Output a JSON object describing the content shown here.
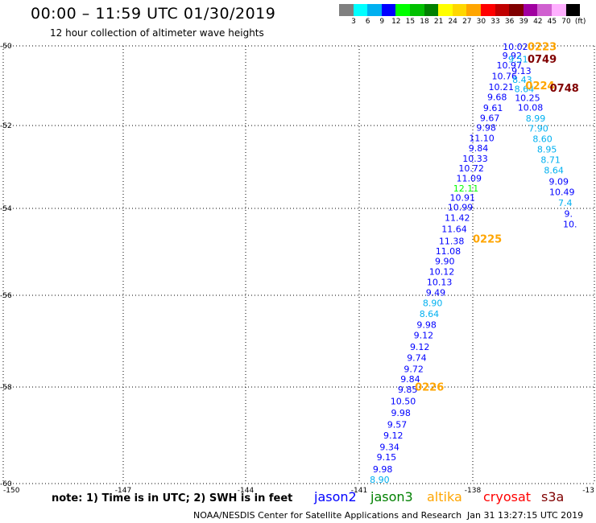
{
  "title": "00:00 – 11:59 UTC 01/30/2019",
  "subtitle": "12 hour collection of altimeter wave heights",
  "color_scale": {
    "labels": [
      "3",
      "6",
      "9",
      "12",
      "15",
      "18",
      "21",
      "24",
      "27",
      "30",
      "33",
      "36",
      "39",
      "42",
      "45",
      "70",
      "(ft)"
    ],
    "colors": [
      "#808080",
      "#00ffff",
      "#00b0f0",
      "#0000ff",
      "#00ff00",
      "#00c000",
      "#008000",
      "#ffff00",
      "#ffd700",
      "#ffa500",
      "#ff0000",
      "#c00000",
      "#800000",
      "#a000a0",
      "#d060d0",
      "#ffb0ff",
      "#000000"
    ]
  },
  "axes": {
    "longitude_labels": [
      "-150",
      "-147",
      "-144",
      "-141",
      "-138",
      "-13"
    ],
    "latitude_labels": [
      "-50",
      "-52",
      "-54",
      "-56",
      "-58",
      "-60"
    ]
  },
  "satellites": [
    {
      "name": "jason2",
      "color": "#0000ff"
    },
    {
      "name": "jason3",
      "color": "#008000"
    },
    {
      "name": "altika",
      "color": "#ffa500"
    },
    {
      "name": "cryosat",
      "color": "#ff0000"
    },
    {
      "name": "s3a",
      "color": "#800000"
    }
  ],
  "note": "note:  1) Time is in UTC;  2) SWH is in feet",
  "credit": "NOAA/NESDIS Center for Satellite Applications and Research",
  "timestamp": "Jan 31 13:27:15 UTC 2019",
  "track_main": [
    {
      "lon": -140.46,
      "lat": -59.93,
      "v": "8.90",
      "c": "#00b0f0"
    },
    {
      "lon": -140.38,
      "lat": -59.72,
      "v": "9.98",
      "c": "#0000ff"
    },
    {
      "lon": -140.28,
      "lat": -59.47,
      "v": "9.15",
      "c": "#0000ff"
    },
    {
      "lon": -140.2,
      "lat": -59.26,
      "v": "9.34",
      "c": "#0000ff"
    },
    {
      "lon": -140.1,
      "lat": -59.02,
      "v": "9.12",
      "c": "#0000ff"
    },
    {
      "lon": -140.0,
      "lat": -58.79,
      "v": "9.57",
      "c": "#0000ff"
    },
    {
      "lon": -139.9,
      "lat": -58.55,
      "v": "9.98",
      "c": "#0000ff"
    },
    {
      "lon": -139.84,
      "lat": -58.31,
      "v": "10.50",
      "c": "#0000ff"
    },
    {
      "lon": -139.72,
      "lat": -58.07,
      "v": "9.85",
      "c": "#0000ff"
    },
    {
      "lon": -139.65,
      "lat": -57.84,
      "v": "9.84",
      "c": "#0000ff"
    },
    {
      "lon": -139.56,
      "lat": -57.62,
      "v": "9.72",
      "c": "#0000ff"
    },
    {
      "lon": -139.48,
      "lat": -57.38,
      "v": "9.74",
      "c": "#0000ff"
    },
    {
      "lon": -139.4,
      "lat": -57.14,
      "v": "9.12",
      "c": "#0000ff"
    },
    {
      "lon": -139.3,
      "lat": -56.89,
      "v": "9.12",
      "c": "#0000ff"
    },
    {
      "lon": -139.22,
      "lat": -56.66,
      "v": "9.98",
      "c": "#0000ff"
    },
    {
      "lon": -139.15,
      "lat": -56.42,
      "v": "8.64",
      "c": "#00b0f0"
    },
    {
      "lon": -139.06,
      "lat": -56.18,
      "v": "8.90",
      "c": "#00b0f0"
    },
    {
      "lon": -138.98,
      "lat": -55.95,
      "v": "9.49",
      "c": "#0000ff"
    },
    {
      "lon": -138.88,
      "lat": -55.71,
      "v": "10.13",
      "c": "#0000ff"
    },
    {
      "lon": -138.82,
      "lat": -55.47,
      "v": "10.12",
      "c": "#0000ff"
    },
    {
      "lon": -138.74,
      "lat": -55.23,
      "v": "9.90",
      "c": "#0000ff"
    },
    {
      "lon": -138.65,
      "lat": -55.0,
      "v": "11.08",
      "c": "#0000ff"
    },
    {
      "lon": -138.56,
      "lat": -54.77,
      "v": "11.38",
      "c": "#0000ff"
    },
    {
      "lon": -138.49,
      "lat": -54.49,
      "v": "11.64",
      "c": "#0000ff"
    },
    {
      "lon": -138.41,
      "lat": -54.23,
      "v": "11.42",
      "c": "#0000ff"
    },
    {
      "lon": -138.33,
      "lat": -53.99,
      "v": "10.99",
      "c": "#0000ff"
    },
    {
      "lon": -138.27,
      "lat": -53.76,
      "v": "10.91",
      "c": "#0000ff"
    },
    {
      "lon": -138.18,
      "lat": -53.53,
      "v": "12.11",
      "c": "#00ff00"
    },
    {
      "lon": -138.1,
      "lat": -53.29,
      "v": "11.09",
      "c": "#0000ff"
    },
    {
      "lon": -138.04,
      "lat": -53.05,
      "v": "10.72",
      "c": "#0000ff"
    },
    {
      "lon": -137.94,
      "lat": -52.82,
      "v": "10.33",
      "c": "#0000ff"
    },
    {
      "lon": -137.86,
      "lat": -52.56,
      "v": "9.84",
      "c": "#0000ff"
    },
    {
      "lon": -137.78,
      "lat": -52.32,
      "v": "11.10",
      "c": "#0000ff"
    },
    {
      "lon": -137.67,
      "lat": -52.07,
      "v": "9.98",
      "c": "#0000ff"
    },
    {
      "lon": -137.58,
      "lat": -51.83,
      "v": "9.67",
      "c": "#0000ff"
    },
    {
      "lon": -137.5,
      "lat": -51.58,
      "v": "9.61",
      "c": "#0000ff"
    },
    {
      "lon": -137.4,
      "lat": -51.3,
      "v": "9.68",
      "c": "#0000ff"
    },
    {
      "lon": -137.3,
      "lat": -51.05,
      "v": "10.21",
      "c": "#0000ff"
    },
    {
      "lon": -137.22,
      "lat": -50.78,
      "v": "10.76",
      "c": "#0000ff"
    },
    {
      "lon": -137.1,
      "lat": -50.51,
      "v": "10.97",
      "c": "#0000ff"
    },
    {
      "lon": -137.03,
      "lat": -50.26,
      "v": "9.92",
      "c": "#0000ff"
    },
    {
      "lon": -136.95,
      "lat": -50.04,
      "v": "10.02",
      "c": "#0000ff"
    }
  ],
  "track_desc": [
    {
      "lon": -136.88,
      "lat": -50.35,
      "v": "9.51",
      "c": "#00b0f0"
    },
    {
      "lon": -136.8,
      "lat": -50.65,
      "v": "9.13",
      "c": "#0000ff"
    },
    {
      "lon": -136.78,
      "lat": -50.87,
      "v": "8.43",
      "c": "#00b0f0"
    },
    {
      "lon": -136.73,
      "lat": -51.1,
      "v": "8.64",
      "c": "#00b0f0"
    },
    {
      "lon": -136.65,
      "lat": -51.32,
      "v": "10.25",
      "c": "#0000ff"
    },
    {
      "lon": -136.58,
      "lat": -51.57,
      "v": "10.08",
      "c": "#0000ff"
    },
    {
      "lon": -136.45,
      "lat": -51.84,
      "v": "8.99",
      "c": "#00b0f0"
    },
    {
      "lon": -136.38,
      "lat": -52.09,
      "v": "7.90",
      "c": "#00b0f0"
    },
    {
      "lon": -136.28,
      "lat": -52.34,
      "v": "8.60",
      "c": "#00b0f0"
    },
    {
      "lon": -136.17,
      "lat": -52.59,
      "v": "8.95",
      "c": "#00b0f0"
    },
    {
      "lon": -136.08,
      "lat": -52.84,
      "v": "8.71",
      "c": "#00b0f0"
    },
    {
      "lon": -136.0,
      "lat": -53.1,
      "v": "8.64",
      "c": "#00b0f0"
    },
    {
      "lon": -135.88,
      "lat": -53.37,
      "v": "9.09",
      "c": "#0000ff"
    },
    {
      "lon": -135.8,
      "lat": -53.62,
      "v": "10.49",
      "c": "#0000ff"
    },
    {
      "lon": -135.72,
      "lat": -53.88,
      "v": "7.4",
      "c": "#00b0f0"
    },
    {
      "lon": -135.64,
      "lat": -54.14,
      "v": "9.",
      "c": "#0000ff"
    },
    {
      "lon": -135.6,
      "lat": -54.38,
      "v": "10.",
      "c": "#0000ff"
    }
  ],
  "time_labels": [
    {
      "lon": -136.65,
      "lat": -50.04,
      "v": "0223",
      "c": "#ffa500"
    },
    {
      "lon": -136.65,
      "lat": -50.35,
      "v": "0749",
      "c": "#800000"
    },
    {
      "lon": -136.7,
      "lat": -51.02,
      "v": "0224",
      "c": "#ffa500"
    },
    {
      "lon": -136.1,
      "lat": -51.08,
      "v": "0748",
      "c": "#800000"
    },
    {
      "lon": -138.0,
      "lat": -54.72,
      "v": "0225",
      "c": "#ffa500"
    },
    {
      "lon": -139.53,
      "lat": -58.02,
      "v": "0226",
      "c": "#ffa500"
    }
  ]
}
